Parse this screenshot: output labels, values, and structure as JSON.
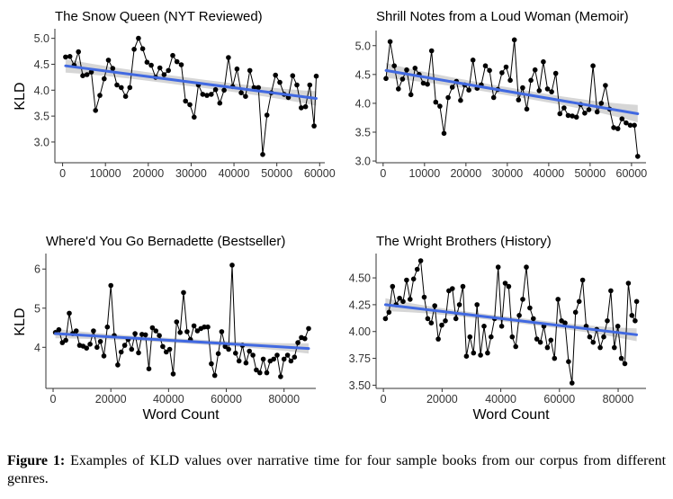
{
  "figure": {
    "caption_label": "Figure 1:",
    "caption_text": "Examples of KLD values over narrative time for four sample books from our corpus from different genres."
  },
  "colors": {
    "line": "#000000",
    "point": "#000000",
    "trend": "#4169E1",
    "ribbon": "#c8c8c8",
    "axis": "#333333"
  },
  "chart_data": [
    {
      "type": "line",
      "title": "The Snow Queen (NYT Reviewed)",
      "xlabel": "",
      "ylabel": "KLD",
      "xlim": [
        -1800,
        61200
      ],
      "ylim": [
        2.6,
        5.15
      ],
      "xticks": [
        0,
        10000,
        20000,
        30000,
        40000,
        50000,
        60000
      ],
      "xtick_labels": [
        "0",
        "10000",
        "20000",
        "30000",
        "40000",
        "50000",
        "60000"
      ],
      "yticks": [
        3.0,
        3.5,
        4.0,
        4.5,
        5.0
      ],
      "ytick_labels": [
        "3.0",
        "3.5",
        "4.0",
        "4.5",
        "5.0"
      ],
      "trend": {
        "x": [
          700,
          59200
        ],
        "y": [
          4.47,
          3.84
        ]
      },
      "band_halfwidth": [
        0.13,
        0.08,
        0.14
      ],
      "series": [
        {
          "x": [
            700,
            1700,
            2700,
            3700,
            4700,
            5700,
            6700,
            7700,
            8700,
            9700,
            10700,
            11700,
            12700,
            13700,
            14700,
            15700,
            16700,
            17700,
            18700,
            19700,
            20700,
            21700,
            22700,
            23700,
            24700,
            25700,
            26700,
            27700,
            28700,
            29700,
            30700,
            31700,
            32700,
            33700,
            34700,
            35700,
            36700,
            37700,
            38700,
            39700,
            40700,
            41700,
            42700,
            43700,
            44700,
            45700,
            46700,
            47700,
            48700,
            49700,
            50700,
            51700,
            52700,
            53700,
            54700,
            55700,
            56700,
            57700,
            58700,
            59200
          ],
          "y": [
            4.64,
            4.65,
            4.48,
            4.74,
            4.28,
            4.3,
            4.35,
            3.61,
            3.9,
            4.22,
            4.58,
            4.42,
            4.1,
            4.05,
            3.88,
            4.05,
            4.79,
            5.0,
            4.8,
            4.54,
            4.48,
            4.25,
            4.43,
            4.3,
            4.38,
            4.67,
            4.55,
            4.49,
            3.79,
            3.72,
            3.48,
            4.1,
            3.92,
            3.9,
            3.92,
            4.01,
            3.75,
            4.0,
            4.63,
            4.07,
            4.41,
            3.95,
            3.88,
            4.38,
            4.05,
            4.05,
            2.76,
            3.52,
            3.95,
            4.29,
            4.15,
            3.92,
            3.86,
            4.28,
            4.1,
            3.66,
            3.68,
            4.1,
            3.31,
            4.27
          ]
        }
      ]
    },
    {
      "type": "line",
      "title": "Shrill Notes from a Loud Woman (Memoir)",
      "xlabel": "",
      "ylabel": "",
      "xlim": [
        -1700,
        63500
      ],
      "ylim": [
        2.97,
        5.23
      ],
      "xticks": [
        0,
        10000,
        20000,
        30000,
        40000,
        50000,
        60000
      ],
      "xtick_labels": [
        "0",
        "10000",
        "20000",
        "30000",
        "40000",
        "50000",
        "60000"
      ],
      "yticks": [
        3.0,
        3.5,
        4.0,
        4.5,
        5.0
      ],
      "ytick_labels": [
        "3.0",
        "3.5",
        "4.0",
        "4.5",
        "5.0"
      ],
      "trend": {
        "x": [
          700,
          61500
        ],
        "y": [
          4.57,
          3.82
        ]
      },
      "band_halfwidth": [
        0.13,
        0.07,
        0.15
      ],
      "series": [
        {
          "x": [
            700,
            1700,
            2700,
            3700,
            4700,
            5700,
            6700,
            7700,
            8700,
            9700,
            10700,
            11700,
            12700,
            13700,
            14700,
            15700,
            16700,
            17700,
            18700,
            19700,
            20700,
            21700,
            22700,
            23700,
            24700,
            25700,
            26700,
            27700,
            28700,
            29700,
            30700,
            31700,
            32700,
            33700,
            34700,
            35700,
            36700,
            37700,
            38700,
            39700,
            40700,
            41700,
            42700,
            43700,
            44700,
            45700,
            46700,
            47700,
            48700,
            49700,
            50700,
            51700,
            52700,
            53700,
            54700,
            55700,
            56700,
            57700,
            58700,
            59700,
            60700,
            61500
          ],
          "y": [
            4.43,
            5.07,
            4.65,
            4.25,
            4.42,
            4.58,
            4.15,
            4.61,
            4.5,
            4.35,
            4.33,
            4.91,
            4.02,
            3.95,
            3.48,
            4.1,
            4.28,
            4.38,
            4.05,
            4.32,
            4.23,
            4.75,
            4.26,
            4.32,
            4.65,
            4.57,
            4.1,
            4.24,
            4.53,
            4.63,
            4.4,
            5.1,
            4.06,
            4.27,
            3.9,
            4.4,
            4.58,
            4.22,
            4.72,
            4.25,
            4.2,
            4.52,
            3.82,
            3.92,
            3.79,
            3.78,
            3.76,
            3.98,
            3.83,
            3.89,
            4.65,
            3.85,
            4.0,
            4.31,
            3.9,
            3.58,
            3.56,
            3.73,
            3.66,
            3.62,
            3.62,
            3.08
          ]
        }
      ]
    },
    {
      "type": "line",
      "title": "Where'd You Go Bernadette (Bestseller)",
      "xlabel": "Word Count",
      "ylabel": "KLD",
      "xlim": [
        -2500,
        91000
      ],
      "ylim": [
        2.95,
        6.35
      ],
      "xticks": [
        0,
        20000,
        40000,
        60000,
        80000
      ],
      "xtick_labels": [
        "0",
        "20000",
        "40000",
        "60000",
        "80000"
      ],
      "yticks": [
        4,
        5,
        6
      ],
      "ytick_labels": [
        "4",
        "5",
        "6"
      ],
      "trend": {
        "x": [
          800,
          88500
        ],
        "y": [
          4.35,
          3.97
        ]
      },
      "band_halfwidth": [
        0.12,
        0.06,
        0.13
      ],
      "series": [
        {
          "x": [
            800,
            2000,
            3200,
            4400,
            5600,
            6800,
            8000,
            9200,
            10400,
            11600,
            12800,
            14000,
            15200,
            16400,
            17600,
            18800,
            20000,
            21200,
            22400,
            23600,
            24800,
            26000,
            27200,
            28400,
            29600,
            30800,
            32000,
            33200,
            34400,
            35600,
            36800,
            38000,
            39200,
            40400,
            41600,
            42800,
            44000,
            45200,
            46400,
            47600,
            48800,
            50000,
            51200,
            52400,
            53600,
            54800,
            56000,
            57200,
            58400,
            59600,
            60800,
            62000,
            63200,
            64400,
            65600,
            66800,
            68000,
            69200,
            70400,
            71600,
            72800,
            74000,
            75200,
            76400,
            77600,
            78800,
            80000,
            81200,
            82400,
            83600,
            84800,
            86000,
            87200,
            88500
          ],
          "y": [
            4.38,
            4.45,
            4.12,
            4.18,
            4.87,
            4.35,
            4.42,
            4.05,
            4.03,
            3.98,
            4.08,
            4.42,
            4.0,
            4.15,
            3.78,
            4.52,
            5.58,
            4.3,
            3.55,
            3.88,
            4.05,
            4.2,
            3.95,
            4.35,
            3.86,
            4.33,
            4.32,
            3.45,
            4.5,
            4.42,
            4.3,
            4.02,
            3.88,
            3.95,
            3.32,
            4.65,
            4.38,
            5.4,
            4.4,
            4.2,
            4.55,
            4.42,
            4.48,
            4.52,
            4.52,
            3.58,
            3.28,
            3.84,
            4.4,
            4.02,
            3.95,
            6.1,
            3.85,
            3.65,
            4.05,
            3.6,
            3.9,
            3.8,
            3.42,
            3.35,
            3.7,
            3.35,
            3.65,
            3.7,
            3.8,
            3.25,
            3.7,
            3.8,
            3.65,
            3.75,
            4.12,
            4.25,
            4.22,
            4.48
          ]
        }
      ]
    },
    {
      "type": "line",
      "title": "The Wright Brothers (History)",
      "xlabel": "Word Count",
      "ylabel": "",
      "xlim": [
        -2500,
        89500
      ],
      "ylim": [
        3.47,
        4.71
      ],
      "xticks": [
        0,
        20000,
        40000,
        60000,
        80000
      ],
      "xtick_labels": [
        "0",
        "20000",
        "40000",
        "60000",
        "80000"
      ],
      "yticks": [
        3.5,
        3.75,
        4.0,
        4.25,
        4.5
      ],
      "ytick_labels": [
        "3.50",
        "3.75",
        "4.00",
        "4.25",
        "4.50"
      ],
      "trend": {
        "x": [
          700,
          86300
        ],
        "y": [
          4.25,
          3.97
        ]
      },
      "band_halfwidth": [
        0.06,
        0.025,
        0.06
      ],
      "series": [
        {
          "x": [
            700,
            1900,
            3100,
            4300,
            5500,
            6700,
            7900,
            9100,
            10300,
            11500,
            12700,
            13900,
            15100,
            16300,
            17500,
            18700,
            19900,
            21100,
            22300,
            23500,
            24700,
            25900,
            27100,
            28300,
            29500,
            30700,
            31900,
            33100,
            34300,
            35500,
            36700,
            37900,
            39100,
            40300,
            41500,
            42700,
            43900,
            45100,
            46300,
            47500,
            48700,
            49900,
            51100,
            52300,
            53500,
            54700,
            55900,
            57100,
            58300,
            59500,
            60700,
            61900,
            63100,
            64300,
            65500,
            66700,
            67900,
            69100,
            70300,
            71500,
            72700,
            73900,
            75100,
            76300,
            77500,
            78700,
            79900,
            81100,
            82300,
            83500,
            84700,
            85800,
            86300
          ],
          "y": [
            4.12,
            4.18,
            4.42,
            4.25,
            4.31,
            4.28,
            4.48,
            4.3,
            4.49,
            4.58,
            4.66,
            4.32,
            4.12,
            4.08,
            4.24,
            3.93,
            4.06,
            4.1,
            4.38,
            4.4,
            4.12,
            4.25,
            4.42,
            3.77,
            3.95,
            3.8,
            4.25,
            3.78,
            4.05,
            3.8,
            3.95,
            4.12,
            4.6,
            4.05,
            4.45,
            4.42,
            3.95,
            3.86,
            4.15,
            4.3,
            4.6,
            4.22,
            4.12,
            3.93,
            3.9,
            4.05,
            3.85,
            3.92,
            3.75,
            4.3,
            4.1,
            4.08,
            3.72,
            3.52,
            4.18,
            4.28,
            4.48,
            4.05,
            3.95,
            3.9,
            4.02,
            3.85,
            3.95,
            4.1,
            4.38,
            3.85,
            4.05,
            3.75,
            3.7,
            4.45,
            4.15,
            4.1,
            4.28
          ]
        }
      ]
    }
  ]
}
